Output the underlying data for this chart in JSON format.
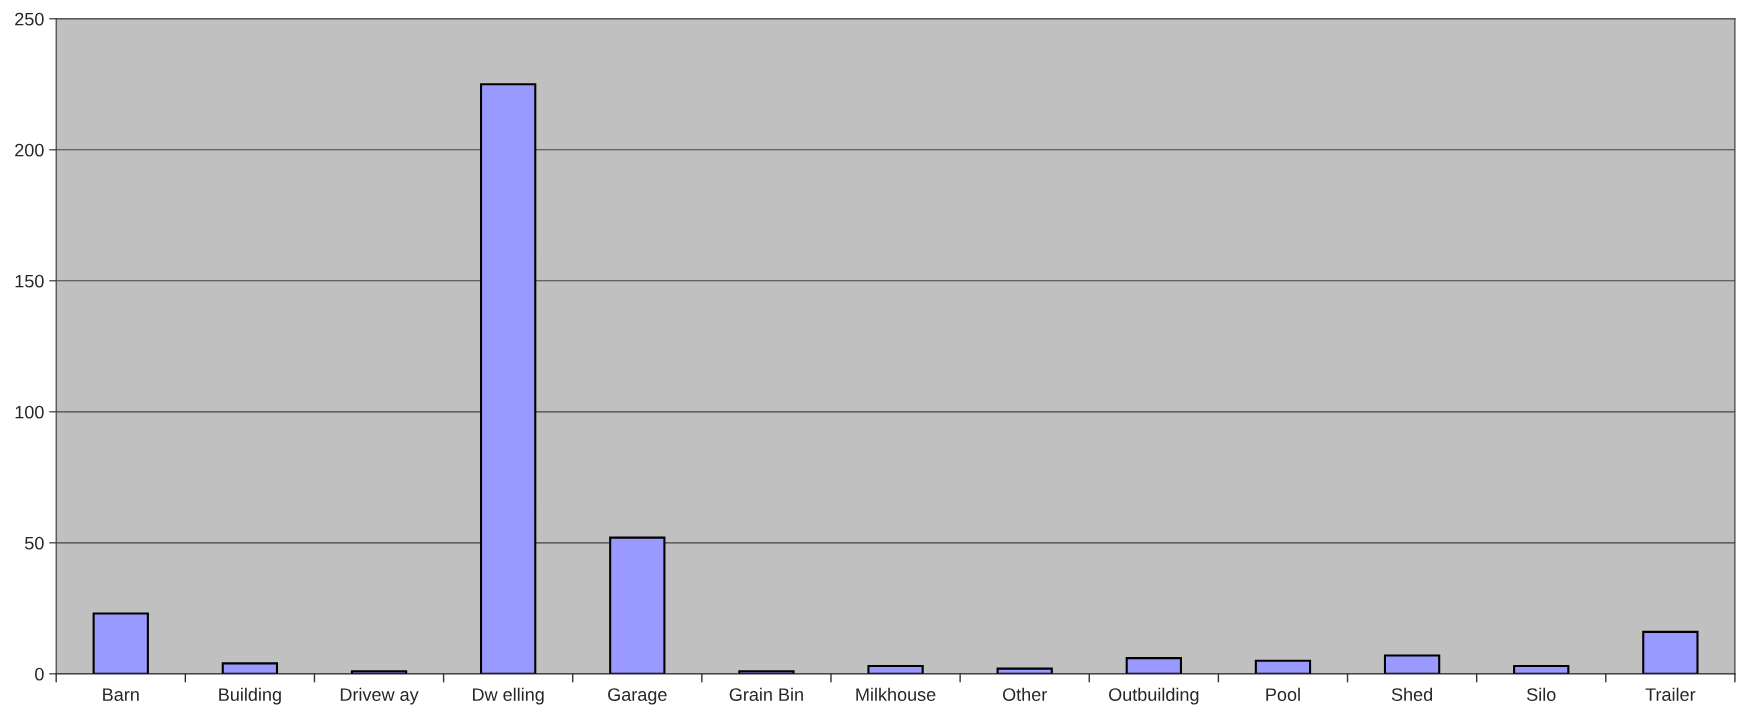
{
  "chart_data": {
    "type": "bar",
    "categories": [
      "Barn",
      "Building",
      "Drivew ay",
      "Dw elling",
      "Garage",
      "Grain Bin",
      "Milkhouse",
      "Other",
      "Outbuilding",
      "Pool",
      "Shed",
      "Silo",
      "Trailer"
    ],
    "values": [
      23,
      4,
      1,
      225,
      52,
      1,
      3,
      2,
      6,
      5,
      7,
      3,
      16
    ],
    "color": "#9999ff",
    "ylim": [
      0,
      250
    ],
    "yticks": [
      0,
      50,
      100,
      150,
      200,
      250
    ],
    "grid": "y"
  }
}
